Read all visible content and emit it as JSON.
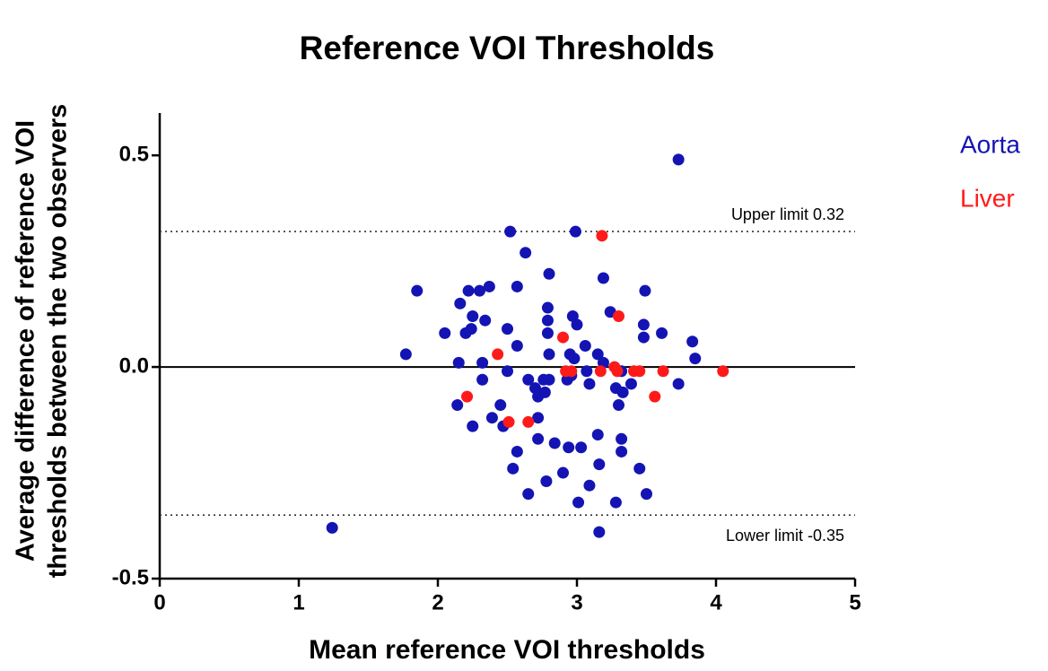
{
  "chart_data": {
    "type": "scatter",
    "title": "Reference VOI Thresholds",
    "xlabel": "Mean reference VOI thresholds",
    "ylabel": [
      "Average difference of reference VOI",
      "thresholds between the two observers"
    ],
    "xlim": [
      0,
      5
    ],
    "ylim": [
      -0.5,
      0.6
    ],
    "xticks": [
      0,
      1,
      2,
      3,
      4,
      5
    ],
    "yticks": [
      {
        "value": -0.5,
        "label": "-0.5"
      },
      {
        "value": 0,
        "label": "0.0"
      },
      {
        "value": 0.5,
        "label": "0.5"
      }
    ],
    "reference_line": 0,
    "limits": [
      {
        "label": "Upper limit 0.32",
        "value": 0.32
      },
      {
        "label": "Lower limit -0.35",
        "value": -0.35
      }
    ],
    "legend": "upper right",
    "series": [
      {
        "name": "Aorta",
        "color": "#1414b4",
        "x": [
          1.77,
          1.85,
          1.24,
          2.05,
          2.16,
          2.22,
          2.3,
          2.37,
          2.25,
          2.34,
          2.2,
          2.24,
          2.15,
          2.32,
          2.32,
          2.14,
          2.25,
          2.39,
          2.45,
          2.47,
          2.52,
          2.63,
          2.57,
          2.5,
          2.57,
          2.5,
          2.57,
          2.54,
          2.65,
          2.65,
          2.7,
          2.72,
          2.72,
          2.76,
          2.77,
          2.72,
          2.8,
          2.79,
          2.79,
          2.79,
          2.8,
          2.8,
          2.84,
          2.78,
          2.94,
          2.9,
          2.97,
          3.0,
          2.95,
          2.98,
          2.99,
          2.93,
          2.96,
          3.03,
          3.01,
          3.06,
          3.07,
          3.09,
          3.15,
          3.15,
          3.16,
          3.16,
          3.09,
          3.19,
          3.24,
          3.19,
          3.28,
          3.3,
          3.33,
          3.32,
          3.39,
          3.32,
          3.32,
          3.28,
          3.45,
          3.48,
          3.48,
          3.49,
          3.5,
          3.61,
          3.73,
          3.73,
          3.83,
          3.85
        ],
        "values": [
          0.03,
          0.18,
          -0.38,
          0.08,
          0.15,
          0.18,
          0.18,
          0.19,
          0.12,
          0.11,
          0.08,
          0.09,
          0.01,
          0.01,
          -0.03,
          -0.09,
          -0.14,
          -0.12,
          -0.09,
          -0.14,
          0.32,
          0.27,
          0.19,
          0.09,
          0.05,
          -0.01,
          -0.2,
          -0.24,
          -0.3,
          -0.03,
          -0.05,
          -0.07,
          -0.12,
          -0.03,
          -0.06,
          -0.17,
          0.22,
          0.14,
          0.11,
          0.08,
          0.03,
          -0.03,
          -0.18,
          -0.27,
          -0.19,
          -0.25,
          0.12,
          0.1,
          0.03,
          0.02,
          0.32,
          -0.03,
          -0.02,
          -0.19,
          -0.32,
          0.05,
          -0.01,
          -0.04,
          0.03,
          -0.16,
          -0.23,
          -0.39,
          -0.28,
          0.21,
          0.13,
          0.01,
          -0.05,
          -0.09,
          -0.06,
          -0.01,
          -0.04,
          -0.17,
          -0.2,
          -0.32,
          -0.24,
          0.1,
          0.07,
          0.18,
          -0.3,
          0.08,
          -0.04,
          0.49,
          0.06,
          0.02
        ]
      },
      {
        "name": "Liver",
        "color": "#ff1a1a",
        "x": [
          3.18,
          3.3,
          2.9,
          2.43,
          2.21,
          2.51,
          2.65,
          2.92,
          2.96,
          3.17,
          3.27,
          3.29,
          3.41,
          3.45,
          3.62,
          3.56,
          4.05
        ],
        "values": [
          0.31,
          0.12,
          0.07,
          0.03,
          -0.07,
          -0.13,
          -0.13,
          -0.01,
          -0.01,
          -0.01,
          0.0,
          -0.01,
          -0.01,
          -0.01,
          -0.01,
          -0.07,
          -0.01
        ]
      }
    ]
  }
}
